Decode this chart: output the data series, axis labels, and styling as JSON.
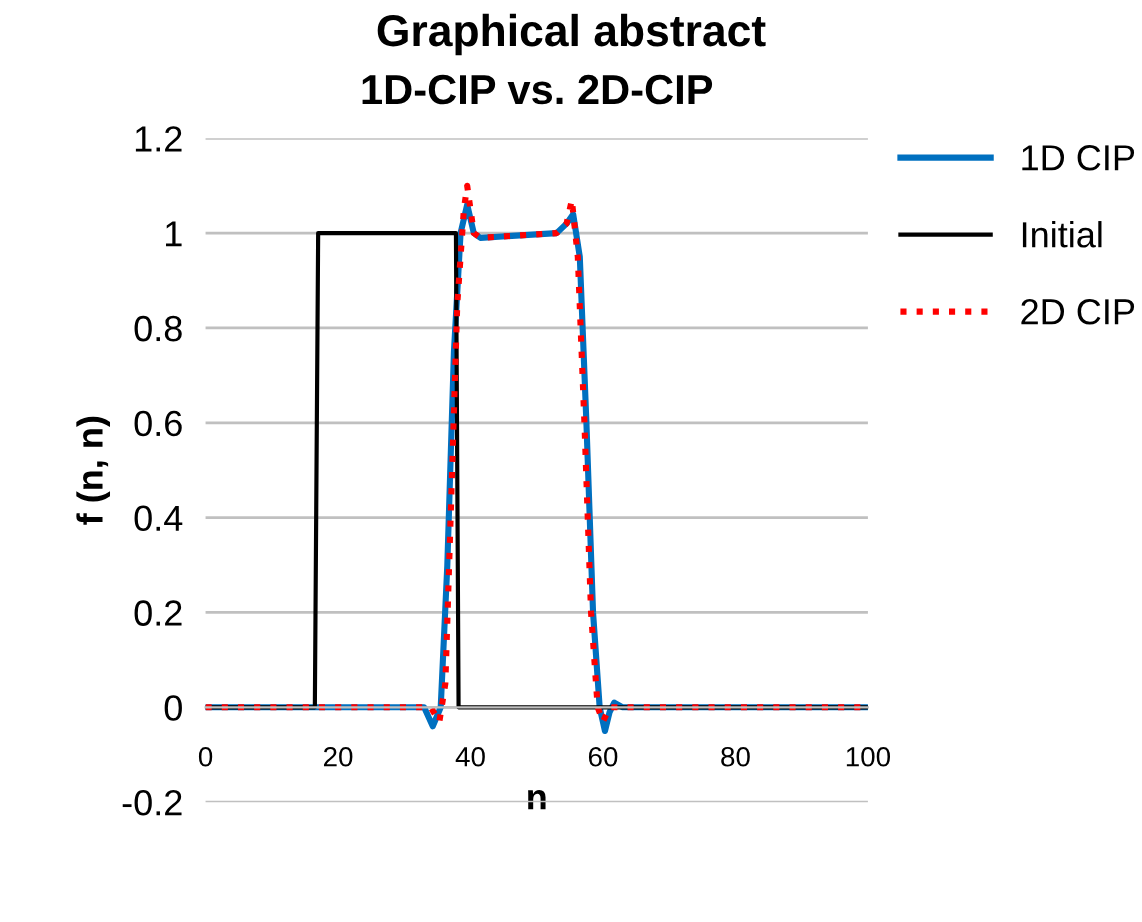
{
  "chart_data": {
    "type": "line",
    "title": "Graphical abstract",
    "subtitle": "1D-CIP vs. 2D-CIP",
    "xlabel": "n",
    "ylabel": "f (n, n)",
    "xlim": [
      0,
      100
    ],
    "xticks": [
      0,
      20,
      40,
      60,
      80,
      100
    ],
    "ylim": [
      -0.2,
      1.2
    ],
    "yticks": [
      -0.2,
      0,
      0.2,
      0.4,
      0.6,
      0.8,
      1,
      1.2
    ],
    "grid": "y",
    "legend": "right",
    "marker": "none",
    "series": [
      {
        "name": "1D CIP",
        "color": "#0070c0",
        "line_style": "solid",
        "x": [
          0,
          33,
          34.3,
          35.5,
          36.5,
          37.5,
          38.5,
          39.5,
          40.5,
          41.5,
          53,
          54.5,
          55.5,
          56.5,
          57.5,
          58.5,
          59.5,
          60.3,
          61,
          61.7,
          63,
          100
        ],
        "values": [
          0,
          0,
          -0.04,
          0,
          0.3,
          0.75,
          1.0,
          1.06,
          1.0,
          0.99,
          1.0,
          1.02,
          1.04,
          0.95,
          0.6,
          0.2,
          0,
          -0.05,
          -0.01,
          0.01,
          0,
          0
        ]
      },
      {
        "name": "Initial",
        "color": "#000000",
        "line_style": "solid",
        "x": [
          0,
          16.5,
          17,
          37.8,
          38.2,
          100
        ],
        "values": [
          0,
          0,
          1,
          1,
          0,
          0
        ]
      },
      {
        "name": "2D CIP",
        "color": "#ff0000",
        "line_style": "dotted",
        "x": [
          0,
          34,
          35.3,
          36.2,
          37,
          38,
          39,
          39.5,
          40.5,
          41.5,
          53,
          54.5,
          55.3,
          56.2,
          57.2,
          58.2,
          59.2,
          60,
          61,
          63,
          100
        ],
        "values": [
          0,
          0,
          -0.03,
          0.05,
          0.4,
          0.85,
          1.05,
          1.1,
          1.0,
          0.99,
          1.0,
          1.02,
          1.07,
          0.95,
          0.6,
          0.2,
          0,
          -0.03,
          0,
          0,
          0
        ]
      }
    ]
  }
}
